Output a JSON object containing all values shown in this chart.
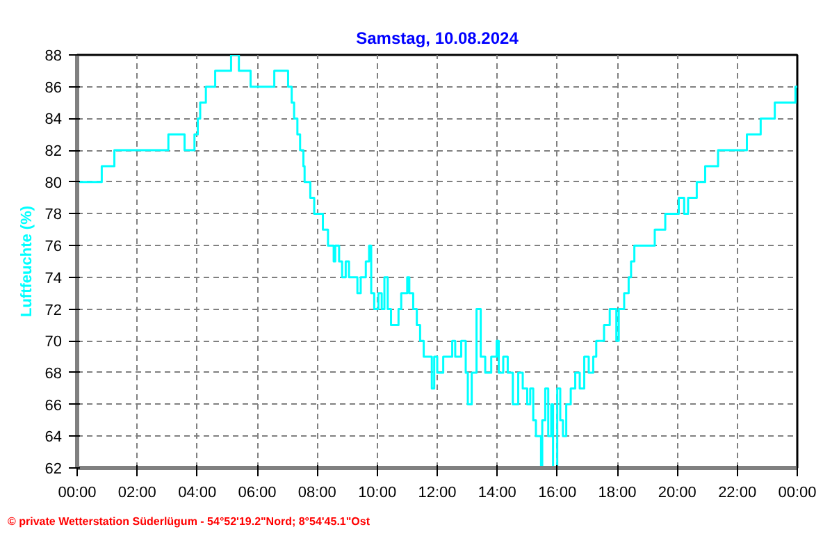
{
  "chart_data": {
    "type": "step",
    "title": "Samstag, 10.08.2024",
    "ylabel": "Luftfeuchte (%)",
    "annotations": [
      "© private Wetterstation Süderlügum  -  54°52'19.2\"Nord; 8°54'45.1\"Ost"
    ],
    "x": [
      0,
      0.82,
      1.24,
      3.04,
      3.58,
      3.91,
      4.02,
      4.1,
      4.29,
      4.6,
      5.13,
      5.39,
      5.78,
      6.57,
      7.03,
      7.15,
      7.23,
      7.34,
      7.43,
      7.54,
      7.58,
      7.77,
      7.9,
      8.19,
      8.36,
      8.55,
      8.6,
      8.73,
      8.83,
      8.95,
      9.06,
      9.34,
      9.45,
      9.62,
      9.73,
      9.8,
      9.9,
      10.04,
      10.15,
      10.24,
      10.35,
      10.46,
      10.71,
      10.8,
      11.0,
      11.07,
      11.2,
      11.32,
      11.43,
      11.55,
      11.82,
      11.9,
      12.0,
      12.2,
      12.5,
      12.6,
      12.8,
      12.95,
      13.02,
      13.15,
      13.31,
      13.45,
      13.6,
      13.8,
      13.98,
      14.05,
      14.2,
      14.35,
      14.52,
      14.7,
      14.85,
      15.0,
      15.1,
      15.2,
      15.29,
      15.46,
      15.5,
      15.6,
      15.7,
      15.8,
      15.86,
      16.0,
      16.1,
      16.19,
      16.3,
      16.45,
      16.6,
      16.75,
      16.9,
      17.05,
      17.2,
      17.3,
      17.56,
      17.75,
      17.97,
      18.05,
      18.23,
      18.38,
      18.46,
      18.57,
      18.85,
      19.25,
      19.6,
      20.05,
      20.23,
      20.36,
      20.65,
      20.93,
      21.36,
      22.32,
      22.78,
      23.25,
      23.94,
      24
    ],
    "series": [
      {
        "color": "#00ffff",
        "values": [
          80,
          81,
          82,
          83,
          82,
          83,
          84,
          85,
          86,
          87,
          88,
          87,
          86,
          87,
          86,
          85,
          84,
          83,
          82,
          81,
          80,
          79,
          78,
          77,
          76,
          75,
          76,
          75,
          74,
          75,
          74,
          73,
          74,
          75,
          76,
          73,
          72,
          73,
          72,
          74,
          72,
          71,
          72,
          73,
          74,
          73,
          72,
          71,
          70,
          69,
          67,
          69,
          68,
          69,
          70,
          69,
          70,
          68,
          66,
          68,
          72,
          69,
          68,
          69,
          70,
          68,
          69,
          68,
          66,
          68,
          67,
          66,
          67,
          65,
          64,
          62,
          65,
          67,
          64,
          66,
          62,
          67,
          65,
          64,
          66,
          67,
          68,
          67,
          69,
          68,
          69,
          70,
          71,
          72,
          70,
          72,
          73,
          74,
          75,
          76,
          76,
          77,
          78,
          79,
          78,
          79,
          80,
          81,
          82,
          83,
          84,
          85,
          86,
          86
        ]
      }
    ],
    "xlim": [
      0,
      24
    ],
    "xticks": [
      {
        "value": 0,
        "label": "00:00"
      },
      {
        "value": 2,
        "label": "02:00"
      },
      {
        "value": 4,
        "label": "04:00"
      },
      {
        "value": 6,
        "label": "06:00"
      },
      {
        "value": 8,
        "label": "08:00"
      },
      {
        "value": 10,
        "label": "10:00"
      },
      {
        "value": 12,
        "label": "12:00"
      },
      {
        "value": 14,
        "label": "14:00"
      },
      {
        "value": 16,
        "label": "16:00"
      },
      {
        "value": 18,
        "label": "18:00"
      },
      {
        "value": 20,
        "label": "20:00"
      },
      {
        "value": 22,
        "label": "22:00"
      },
      {
        "value": 24,
        "label": "00:00"
      }
    ],
    "ylim": [
      62,
      88
    ],
    "yticks": [
      62,
      64,
      66,
      68,
      70,
      72,
      74,
      76,
      78,
      80,
      82,
      84,
      86,
      88
    ],
    "grid": true,
    "line_style": "solid"
  }
}
